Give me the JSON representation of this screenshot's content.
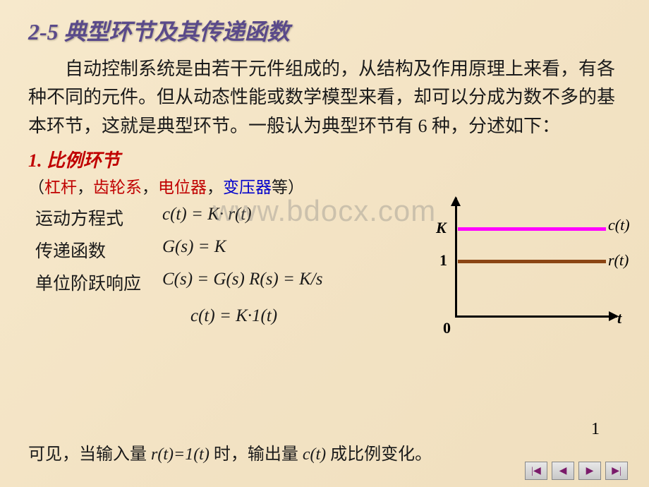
{
  "slide": {
    "title": "2-5  典型环节及其传递函数",
    "body": "自动控制系统是由若干元件组成的，从结构及作用原理上来看，有各种不同的元件。但从动态性能或数学模型来看，却可以分成为数不多的基本环节，这就是典型环节。一般认为典型环节有 6 种，分述如下：",
    "section": "1. 比例环节",
    "examples": {
      "open": "（",
      "e1": "杠杆",
      "c1": "，",
      "e2": "齿轮系",
      "c2": "，",
      "e3": "电位器",
      "c3": "，",
      "e4": "变压器",
      "close": "等）"
    },
    "eq1_label": "运动方程式",
    "eq1_expr": "c(t) = K· r(t)",
    "eq2_label": "传递函数",
    "eq2_expr": "G(s) = K",
    "eq3_label": "单位阶跃响应",
    "eq3_expr": "C(s) = G(s) R(s) = K/s",
    "eq4_expr": "c(t) = K·1(t)",
    "footer_pre": "可见，当输入量 ",
    "footer_mid1": "r(t)=1(t)",
    "footer_mid2": " 时，输出量 ",
    "footer_mid3": "c(t)",
    "footer_end": " 成比例变化。"
  },
  "watermark": "www.bdocx.com",
  "chart": {
    "type": "line",
    "y_labels": {
      "K": "K",
      "one": "1",
      "zero": "0"
    },
    "x_label": "t",
    "series_c_label": "c(t)",
    "series_r_label": "r(t)",
    "colors": {
      "c_line": "#ff00ff",
      "r_line": "#8b4513",
      "axis": "#000000",
      "background": "#f5e6c8"
    },
    "c_value_rel": 0.75,
    "r_value_rel": 0.48
  },
  "page_number": "1",
  "nav": {
    "first": "|◀",
    "prev": "◀",
    "next": "▶",
    "last": "▶|"
  }
}
